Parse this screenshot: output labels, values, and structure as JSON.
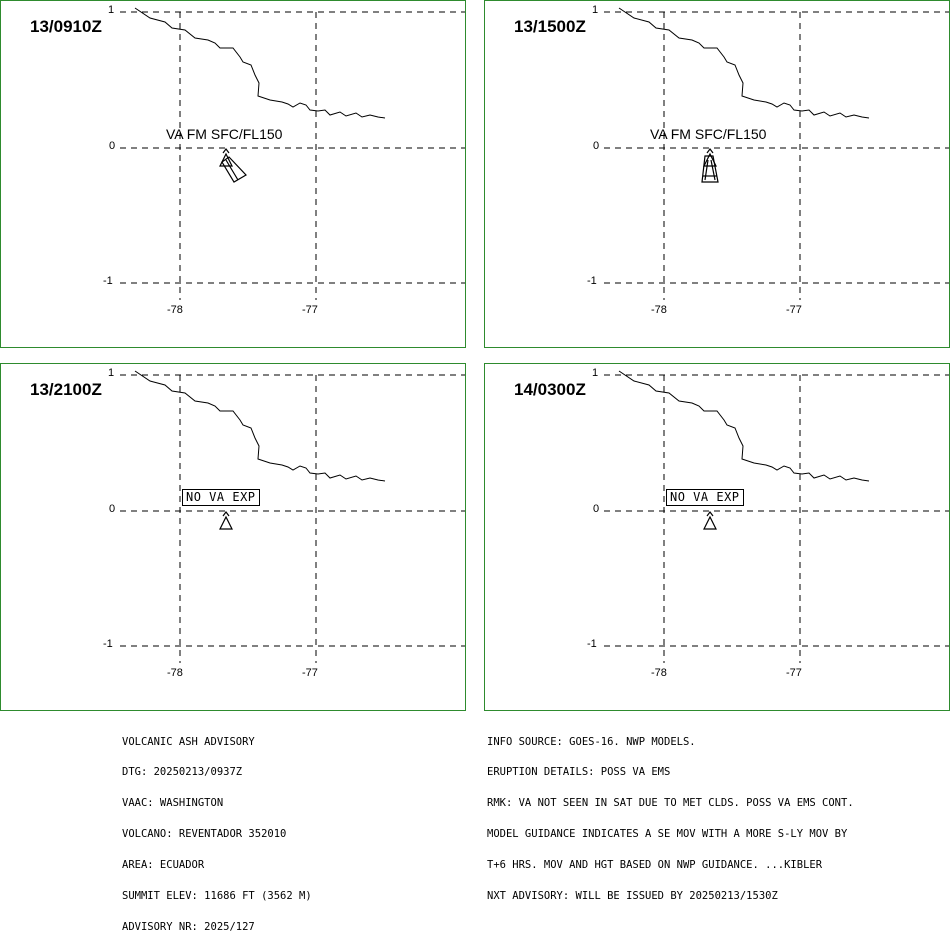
{
  "panels": [
    {
      "time": "13/0910Z",
      "label": "VA FM SFC/FL150",
      "label_type": "text",
      "plume": "southeast"
    },
    {
      "time": "13/1500Z",
      "label": "VA FM SFC/FL150",
      "label_type": "text",
      "plume": "south"
    },
    {
      "time": "13/2100Z",
      "label": "NO VA EXP",
      "label_type": "box",
      "plume": "none"
    },
    {
      "time": "14/0300Z",
      "label": "NO VA EXP",
      "label_type": "box",
      "plume": "none"
    }
  ],
  "axes": {
    "lat_ticks": [
      "1",
      "0",
      "-1"
    ],
    "lon_ticks": [
      "-78",
      "-77"
    ]
  },
  "colors": {
    "frame": "#2e8b2e",
    "lines": "#000000"
  },
  "advisory_left": [
    "VOLCANIC ASH ADVISORY",
    "DTG: 20250213/0937Z",
    "VAAC: WASHINGTON",
    "VOLCANO: REVENTADOR 352010",
    "AREA: ECUADOR",
    "SUMMIT ELEV: 11686 FT (3562 M)",
    "ADVISORY NR: 2025/127"
  ],
  "advisory_right": [
    "INFO SOURCE: GOES-16. NWP MODELS.",
    "ERUPTION DETAILS: POSS VA EMS",
    "RMK: VA NOT SEEN IN SAT DUE TO MET CLDS. POSS VA EMS CONT.",
    "MODEL GUIDANCE INDICATES A SE MOV WITH A MORE S-LY MOV BY",
    "T+6 HRS. MOV AND HGT BASED ON NWP GUIDANCE. ...KIBLER",
    "NXT ADVISORY: WILL BE ISSUED BY 20250213/1530Z"
  ]
}
